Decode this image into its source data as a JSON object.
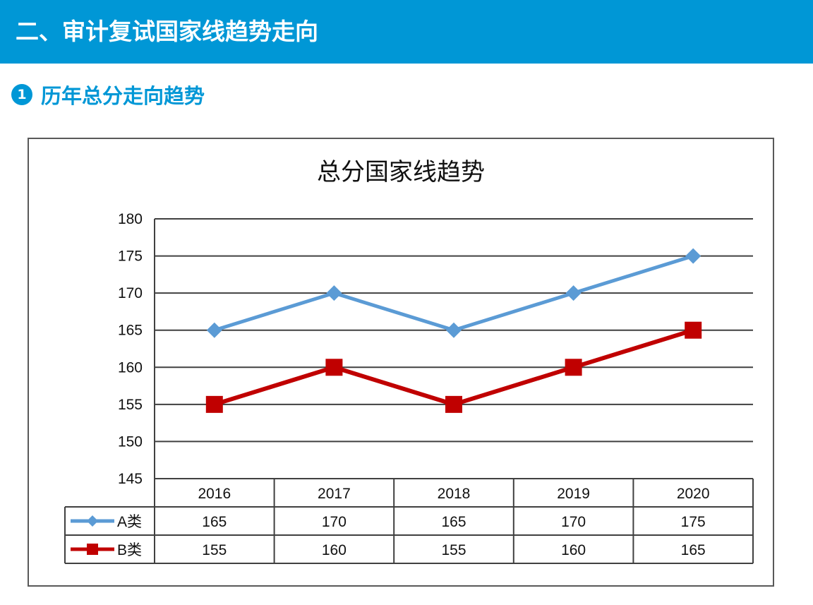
{
  "header": {
    "title": "二、审计复试国家线趋势走向"
  },
  "section": {
    "number": "1",
    "title": "历年总分走向趋势"
  },
  "chart_data": {
    "type": "line",
    "title": "总分国家线趋势",
    "categories": [
      "2016",
      "2017",
      "2018",
      "2019",
      "2020"
    ],
    "series": [
      {
        "name": "A类",
        "values": [
          165,
          170,
          165,
          170,
          175
        ],
        "color": "#5b9bd5",
        "marker": "diamond"
      },
      {
        "name": "B类",
        "values": [
          155,
          160,
          155,
          160,
          165
        ],
        "color": "#c00000",
        "marker": "square"
      }
    ],
    "yticks": [
      "145",
      "150",
      "155",
      "160",
      "165",
      "170",
      "175",
      "180"
    ],
    "ylim": [
      145,
      180
    ],
    "grid": true,
    "legend": "data-table"
  }
}
